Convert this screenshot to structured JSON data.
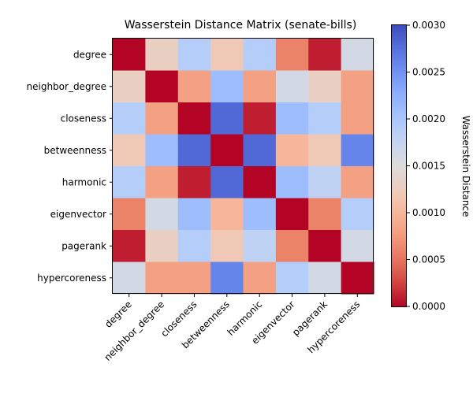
{
  "chart_data": {
    "type": "heatmap",
    "title": "Wasserstein Distance Matrix (senate-bills)",
    "row_labels": [
      "degree",
      "neighbor_degree",
      "closeness",
      "betweenness",
      "harmonic",
      "eigenvector",
      "pagerank",
      "hypercoreness"
    ],
    "col_labels": [
      "degree",
      "neighbor_degree",
      "closeness",
      "betweenness",
      "harmonic",
      "eigenvector",
      "pagerank",
      "hypercoreness"
    ],
    "values": [
      [
        0.0,
        0.0013,
        0.0019,
        0.0012,
        0.0019,
        0.0006,
        0.0001,
        0.0016
      ],
      [
        0.0013,
        0.0,
        0.0008,
        0.0021,
        0.0008,
        0.0016,
        0.0013,
        0.0008
      ],
      [
        0.0019,
        0.0008,
        0.0,
        0.0028,
        0.0001,
        0.0021,
        0.0019,
        0.0008
      ],
      [
        0.0012,
        0.0021,
        0.0028,
        0.0,
        0.0028,
        0.001,
        0.0012,
        0.0026
      ],
      [
        0.0019,
        0.0008,
        0.0001,
        0.0028,
        0.0,
        0.0021,
        0.0018,
        0.0008
      ],
      [
        0.0006,
        0.0016,
        0.0021,
        0.001,
        0.0021,
        0.0,
        0.0006,
        0.0019
      ],
      [
        0.0001,
        0.0013,
        0.0019,
        0.0012,
        0.0018,
        0.0006,
        0.0,
        0.0016
      ],
      [
        0.0016,
        0.0008,
        0.0008,
        0.0026,
        0.0008,
        0.0019,
        0.0016,
        0.0
      ]
    ],
    "colormap": "coolwarm_r",
    "colorbar": {
      "label": "Wasserstein Distance",
      "min": 0.0,
      "max": 0.003,
      "ticks": [
        "0.0000",
        "0.0005",
        "0.0010",
        "0.0015",
        "0.0020",
        "0.0025",
        "0.0030"
      ]
    },
    "grid": false,
    "colors": {
      "low": "#b40426",
      "mid": "#dddcdc",
      "high": "#3b4cc0"
    }
  }
}
